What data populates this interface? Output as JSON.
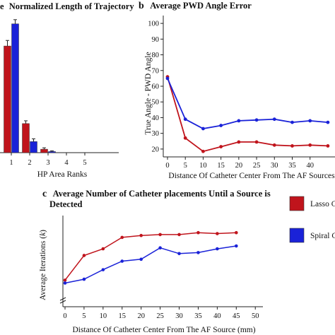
{
  "chart_data": [
    {
      "panel": "a",
      "panel_letter_visible": "e",
      "type": "bar",
      "title": "Normalized Length of Trajectory",
      "xlabel": "HP Area Ranks",
      "ylabel": "",
      "categories": [
        "1",
        "2",
        "3",
        "4",
        "5"
      ],
      "ylim": [
        0,
        1
      ],
      "series": [
        {
          "color": "#c0141c",
          "values": [
            0.77,
            0.21,
            0.025,
            0,
            0
          ],
          "errors": [
            0.04,
            0.02,
            0.01,
            0,
            0
          ]
        },
        {
          "color": "#1a22d8",
          "values": [
            0.93,
            0.08,
            0.008,
            0,
            0
          ],
          "errors": [
            0.03,
            0.02,
            0.005,
            0,
            0
          ]
        }
      ]
    },
    {
      "panel": "b",
      "type": "line",
      "title": "Average PWD Angle Error",
      "xlabel": "Distance Of Catheter Center From The AF Sources",
      "ylabel": "True Angle - PWD Angle",
      "xticks": [
        "0",
        "5",
        "10",
        "15",
        "20",
        "25",
        "30",
        "35",
        "40"
      ],
      "yticks": [
        "20",
        "30",
        "40",
        "50",
        "60",
        "70",
        "80",
        "90",
        "100"
      ],
      "xlim": [
        0,
        47
      ],
      "ylim": [
        15,
        105
      ],
      "x": [
        0,
        5,
        10,
        15,
        20,
        25,
        30,
        35,
        40,
        45
      ],
      "series": [
        {
          "color": "#c0141c",
          "values": [
            66,
            27,
            18.5,
            21.5,
            24.5,
            24.5,
            22.5,
            22,
            22.5,
            22
          ]
        },
        {
          "color": "#1a22d8",
          "values": [
            65,
            39,
            33,
            35,
            38,
            38.5,
            39,
            37,
            38,
            37
          ]
        }
      ]
    },
    {
      "panel": "c",
      "type": "line",
      "title": "Average Number of Catheter placements Until a Source is Detected",
      "title_lines": [
        "Average Number of Catheter placements Until a Source is",
        "Detected"
      ],
      "xlabel": "Distance Of Catheter Center From The AF Source (mm)",
      "ylabel": "Average Iterations (",
      "ylabel_italic": "k",
      "ylabel_tail": ")",
      "xticks": [
        "0",
        "5",
        "10",
        "15",
        "20",
        "25",
        "30",
        "35",
        "40",
        "45",
        "50"
      ],
      "xlim": [
        0,
        52
      ],
      "ylim": [
        3.5,
        8
      ],
      "x": [
        0,
        5,
        10,
        15,
        20,
        25,
        30,
        35,
        40,
        45
      ],
      "series": [
        {
          "name": "Lasso Ca",
          "color": "#c0141c",
          "values": [
            4.6,
            5.9,
            6.25,
            6.85,
            6.95,
            7.0,
            7.0,
            7.1,
            7.05,
            7.1
          ]
        },
        {
          "name": "Spiral Ca",
          "color": "#1a22d8",
          "values": [
            4.45,
            4.65,
            5.15,
            5.6,
            5.7,
            6.3,
            6.0,
            6.05,
            6.25,
            6.4
          ]
        }
      ],
      "legend": "right"
    }
  ],
  "panel_labels": {
    "b": "b",
    "c": "c"
  }
}
